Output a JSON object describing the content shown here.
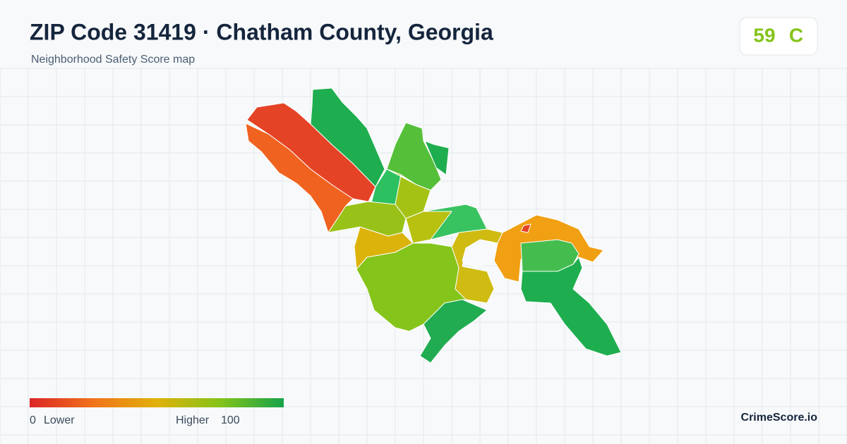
{
  "header": {
    "title": "ZIP Code 31419 · Chatham County, Georgia",
    "subtitle": "Neighborhood Safety Score map"
  },
  "score": {
    "value": 59,
    "grade": "C"
  },
  "legend": {
    "min": 0,
    "min_label": "Lower",
    "max_label": "Higher",
    "max": 100
  },
  "brand": "CrimeScore.io"
}
